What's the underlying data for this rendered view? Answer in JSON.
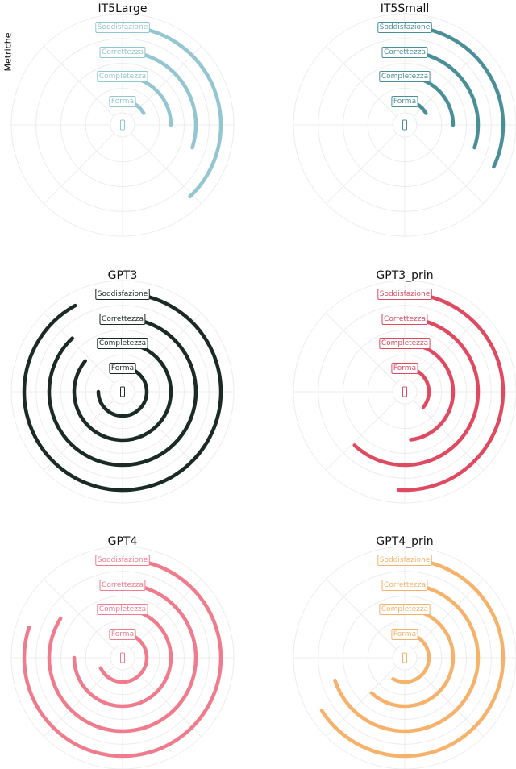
{
  "ylabel": "Metriche",
  "chart_data": {
    "type": "radial-bar",
    "metrics": [
      "Forma",
      "Completezza",
      "Correttezza",
      "Soddisfazione"
    ],
    "max_value": 1.0,
    "panels": [
      {
        "title": "IT5Large",
        "color": "#93c6d0",
        "values": [
          0.17,
          0.25,
          0.3,
          0.38
        ]
      },
      {
        "title": "IT5Small",
        "color": "#4a8e99",
        "values": [
          0.17,
          0.25,
          0.3,
          0.32
        ]
      },
      {
        "title": "GPT3",
        "color": "#1a2b26",
        "values": [
          0.75,
          0.86,
          0.88,
          0.92
        ]
      },
      {
        "title": "GPT3_prin",
        "color": "#e04a60",
        "values": [
          0.36,
          0.48,
          0.62,
          0.51
        ]
      },
      {
        "title": "GPT4",
        "color": "#f07b8c",
        "values": [
          0.68,
          0.75,
          0.84,
          0.8
        ]
      },
      {
        "title": "GPT4_prin",
        "color": "#f6b26b",
        "values": [
          0.58,
          0.62,
          0.7,
          0.66
        ]
      }
    ]
  }
}
